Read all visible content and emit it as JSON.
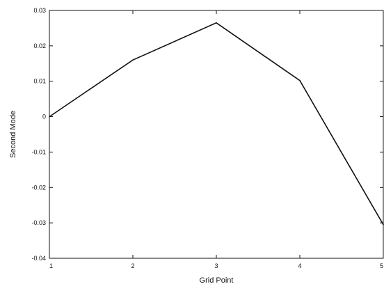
{
  "chart_data": {
    "type": "line",
    "title": "",
    "xlabel": "Grid Point",
    "ylabel": "Second Mode",
    "x": [
      1,
      2,
      3,
      4,
      5
    ],
    "series": [
      {
        "values": [
          0.0,
          0.016,
          0.0265,
          0.0102,
          -0.0305
        ]
      }
    ],
    "xlim": [
      1,
      5
    ],
    "ylim": [
      -0.04,
      0.03
    ],
    "xticks": [
      1,
      2,
      3,
      4,
      5
    ],
    "xtick_labels": [
      "1",
      "2",
      "3",
      "4",
      "5"
    ],
    "yticks": [
      0.03,
      0.02,
      0.01,
      0,
      -0.01,
      -0.02,
      -0.03,
      -0.04
    ],
    "ytick_labels": [
      "0.03",
      "0.02",
      "0.01",
      "0",
      "-0.01",
      "-0.02",
      "-0.03",
      "-0.04"
    ],
    "grid": false,
    "legend": false,
    "line_color": "#111111"
  }
}
